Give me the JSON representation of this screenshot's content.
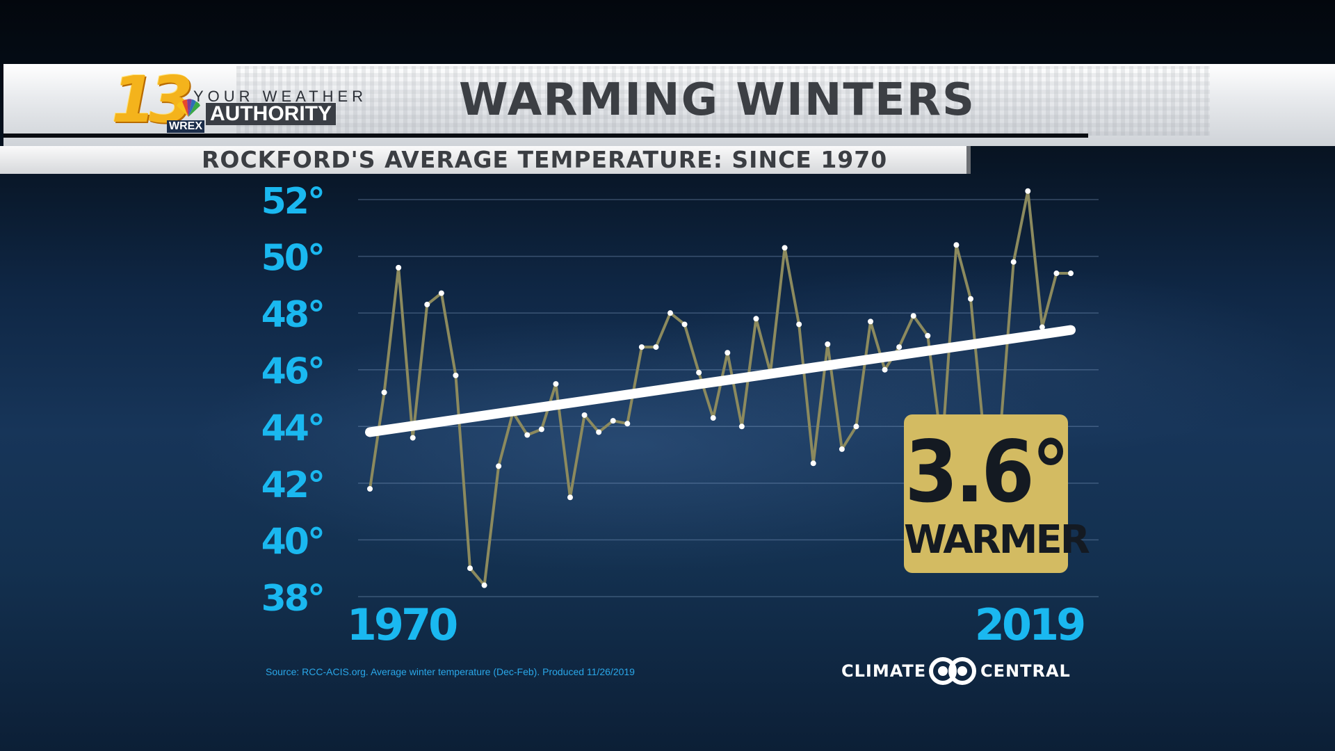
{
  "header": {
    "logo_number": "13",
    "logo_station": "WREX",
    "logo_tagline_top": "YOUR WEATHER",
    "logo_tagline_bottom": "AUTHORITY",
    "title": "WARMING WINTERS",
    "subtitle": "ROCKFORD'S AVERAGE TEMPERATURE: SINCE 1970"
  },
  "callout": {
    "value": "3.6°",
    "label": "WARMER",
    "color": "#d3bb62"
  },
  "footer": {
    "source": "Source: RCC-ACIS.org. Average winter temperature (Dec-Feb). Produced 11/26/2019",
    "brand_left": "CLIMATE",
    "brand_right": "CENTRAL"
  },
  "colors": {
    "axis_labels": "#1ab8f0",
    "series_line": "#8c8a5e",
    "trend_line": "#ffffff",
    "points": "#ffffff"
  },
  "chart_data": {
    "type": "line",
    "title": "ROCKFORD'S AVERAGE TEMPERATURE: SINCE 1970",
    "xlabel": "",
    "ylabel": "",
    "x_tick_labels": [
      "1970",
      "2019"
    ],
    "y_ticks": [
      38,
      40,
      42,
      44,
      46,
      48,
      50,
      52
    ],
    "y_tick_labels": [
      "38°",
      "40°",
      "42°",
      "44°",
      "46°",
      "48°",
      "50°",
      "52°"
    ],
    "ylim": [
      38,
      52
    ],
    "xlim": [
      1970,
      2019
    ],
    "grid": true,
    "x": [
      1970,
      1971,
      1972,
      1973,
      1974,
      1975,
      1976,
      1977,
      1978,
      1979,
      1980,
      1981,
      1982,
      1983,
      1984,
      1985,
      1986,
      1987,
      1988,
      1989,
      1990,
      1991,
      1992,
      1993,
      1994,
      1995,
      1996,
      1997,
      1998,
      1999,
      2000,
      2001,
      2002,
      2003,
      2004,
      2005,
      2006,
      2007,
      2008,
      2009,
      2010,
      2011,
      2012,
      2013,
      2014,
      2015,
      2016,
      2017,
      2018,
      2019
    ],
    "series": [
      {
        "values": [
          41.8,
          45.2,
          49.6,
          43.6,
          48.3,
          48.7,
          45.8,
          39.0,
          38.4,
          42.6,
          44.5,
          43.7,
          43.9,
          45.5,
          41.5,
          44.4,
          43.8,
          44.2,
          44.1,
          46.8,
          46.8,
          48.0,
          47.6,
          45.9,
          44.3,
          46.6,
          44.0,
          47.8,
          45.9,
          50.3,
          47.6,
          42.7,
          46.9,
          43.2,
          44.0,
          47.7,
          46.0,
          46.8,
          47.9,
          47.2,
          43.2,
          50.4,
          48.5,
          43.3,
          43.3,
          49.8,
          52.3,
          47.5,
          49.4,
          49.4
        ]
      }
    ],
    "trend": {
      "x": [
        1970,
        2019
      ],
      "y": [
        43.8,
        47.4
      ]
    }
  }
}
